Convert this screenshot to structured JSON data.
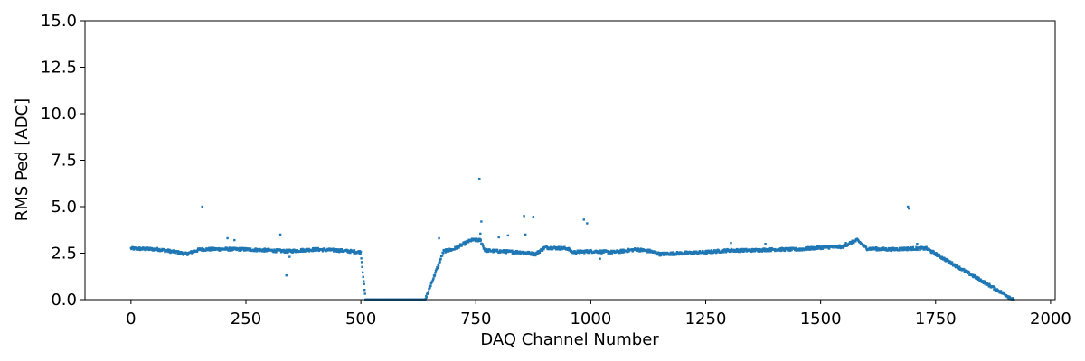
{
  "chart_data": {
    "type": "scatter",
    "title": "",
    "xlabel": "DAQ Channel Number",
    "ylabel": "RMS Ped [ADC]",
    "xlim": [
      -100,
      2010
    ],
    "ylim": [
      0,
      15
    ],
    "xticks": [
      0,
      250,
      500,
      750,
      1000,
      1250,
      1500,
      1750,
      2000
    ],
    "xtick_labels": [
      "0",
      "250",
      "500",
      "750",
      "1000",
      "1250",
      "1500",
      "1750",
      "2000"
    ],
    "yticks": [
      0,
      2.5,
      5,
      7.5,
      10,
      12.5,
      15
    ],
    "ytick_labels": [
      "0.0",
      "2.5",
      "5.0",
      "7.5",
      "10.0",
      "12.5",
      "15.0"
    ],
    "grid": false,
    "marker_color": "#1f77b4",
    "series": [
      {
        "baseline_profile": {
          "x": [
            0,
            60,
            100,
            120,
            150,
            200,
            250,
            300,
            340,
            400,
            450,
            500,
            510,
            640,
            680,
            700,
            720,
            740,
            760,
            770,
            800,
            850,
            880,
            900,
            950,
            960,
            1000,
            1050,
            1100,
            1130,
            1150,
            1200,
            1250,
            1300,
            1350,
            1400,
            1450,
            1500,
            1550,
            1560,
            1580,
            1600,
            1650,
            1700,
            1730,
            1920
          ],
          "y": [
            2.75,
            2.7,
            2.55,
            2.45,
            2.7,
            2.72,
            2.7,
            2.65,
            2.6,
            2.7,
            2.65,
            2.55,
            0.0,
            0.0,
            2.6,
            2.7,
            2.95,
            3.2,
            3.2,
            2.65,
            2.6,
            2.55,
            2.45,
            2.8,
            2.75,
            2.55,
            2.6,
            2.55,
            2.7,
            2.6,
            2.45,
            2.5,
            2.55,
            2.65,
            2.65,
            2.7,
            2.7,
            2.8,
            2.85,
            3.0,
            3.2,
            2.75,
            2.7,
            2.75,
            2.75,
            0.0
          ],
          "noise": 0.08
        },
        "outliers": [
          {
            "x": 155,
            "y": 5.0
          },
          {
            "x": 210,
            "y": 3.3
          },
          {
            "x": 225,
            "y": 3.2
          },
          {
            "x": 325,
            "y": 3.5
          },
          {
            "x": 338,
            "y": 1.3
          },
          {
            "x": 345,
            "y": 2.3
          },
          {
            "x": 670,
            "y": 3.3
          },
          {
            "x": 758,
            "y": 6.5
          },
          {
            "x": 760,
            "y": 3.55
          },
          {
            "x": 762,
            "y": 4.2
          },
          {
            "x": 800,
            "y": 3.35
          },
          {
            "x": 820,
            "y": 3.45
          },
          {
            "x": 855,
            "y": 4.5
          },
          {
            "x": 858,
            "y": 3.5
          },
          {
            "x": 875,
            "y": 4.45
          },
          {
            "x": 985,
            "y": 4.3
          },
          {
            "x": 992,
            "y": 4.1
          },
          {
            "x": 1020,
            "y": 2.2
          },
          {
            "x": 1305,
            "y": 3.05
          },
          {
            "x": 1380,
            "y": 3.0
          },
          {
            "x": 1555,
            "y": 3.05
          },
          {
            "x": 1690,
            "y": 5.0
          },
          {
            "x": 1692,
            "y": 4.9
          },
          {
            "x": 1710,
            "y": 3.0
          }
        ]
      }
    ]
  }
}
